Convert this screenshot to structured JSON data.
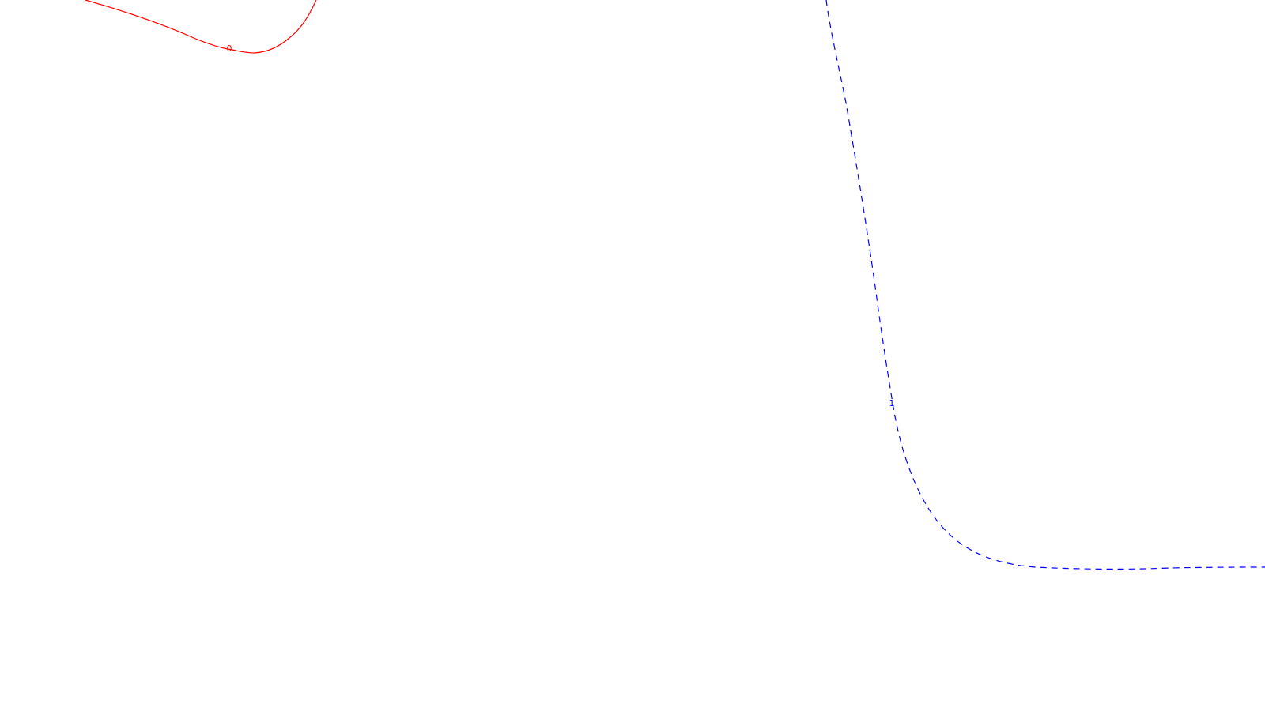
{
  "contours": [
    {
      "label": "0",
      "color": "#ff0000",
      "dashed": false
    },
    {
      "label": "1",
      "color": "#0000ff",
      "dashed": true
    }
  ]
}
